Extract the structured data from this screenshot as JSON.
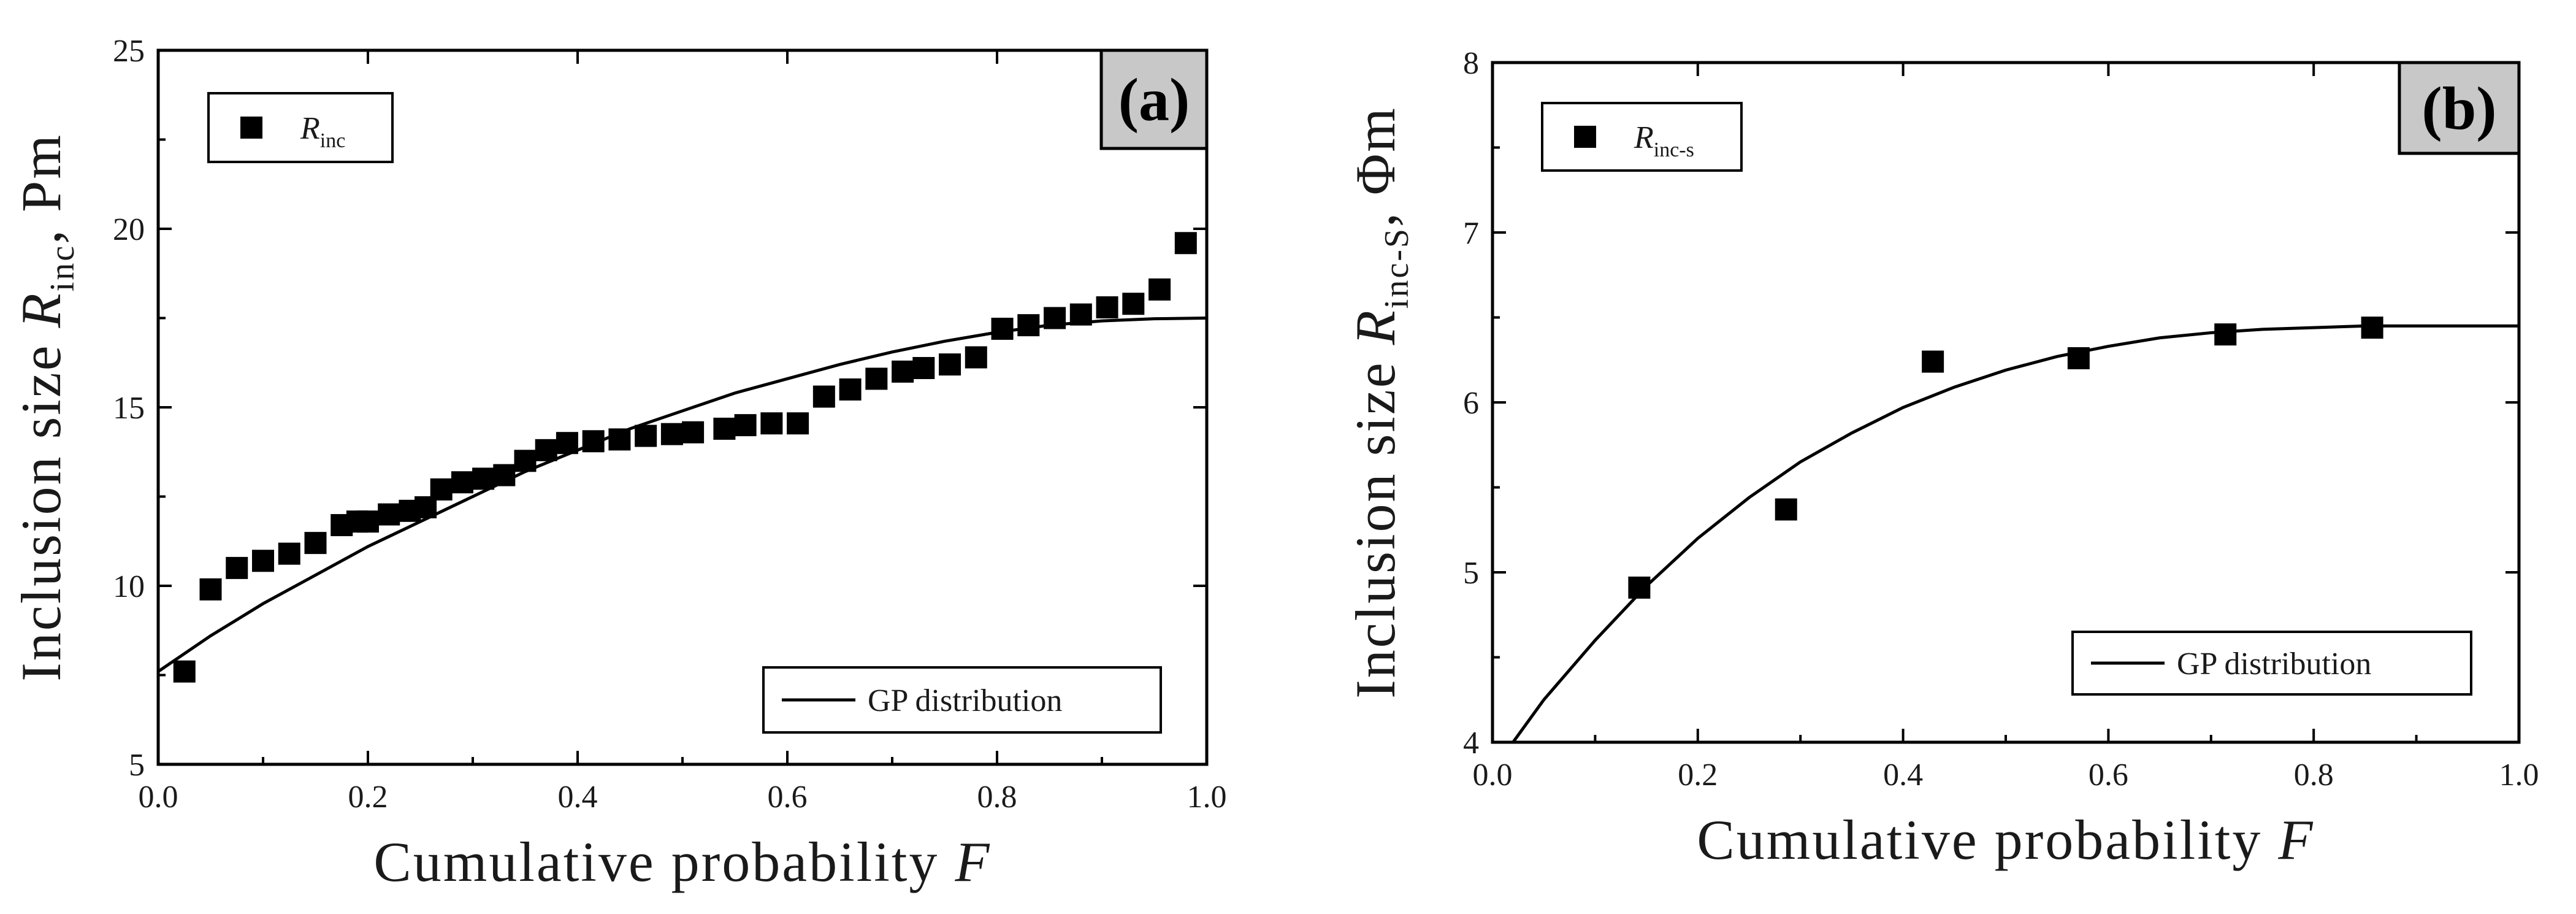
{
  "chart_data": [
    {
      "type": "scatter",
      "panel_label": "(a)",
      "xlabel": "Cumulative probability",
      "xlabel_var": "F",
      "ylabel_prefix": "Inclusion size",
      "ylabel_var": "R",
      "ylabel_sub": "inc",
      "ylabel_suffix": ", Pm",
      "xlim": [
        0.0,
        1.0
      ],
      "ylim": [
        5,
        25
      ],
      "xticks": [
        "0.0",
        "0.2",
        "0.4",
        "0.6",
        "0.8",
        "1.0"
      ],
      "yticks": [
        "5",
        "10",
        "15",
        "20",
        "25"
      ],
      "legend_upper": {
        "var": "R",
        "sub": "inc",
        "position": "top-left"
      },
      "legend_lower": {
        "label": "GP distribution",
        "position": "bottom-right"
      },
      "series": [
        {
          "name": "R_inc",
          "kind": "markers",
          "x": [
            0.025,
            0.05,
            0.075,
            0.1,
            0.125,
            0.15,
            0.175,
            0.19,
            0.2,
            0.22,
            0.24,
            0.255,
            0.27,
            0.29,
            0.31,
            0.33,
            0.35,
            0.37,
            0.39,
            0.415,
            0.44,
            0.465,
            0.49,
            0.51,
            0.54,
            0.56,
            0.585,
            0.61,
            0.635,
            0.66,
            0.685,
            0.71,
            0.73,
            0.755,
            0.78,
            0.805,
            0.83,
            0.855,
            0.88,
            0.905,
            0.93,
            0.955,
            0.98
          ],
          "y": [
            7.6,
            9.9,
            10.5,
            10.7,
            10.9,
            11.2,
            11.7,
            11.8,
            11.8,
            12.0,
            12.1,
            12.2,
            12.7,
            12.9,
            13.0,
            13.1,
            13.5,
            13.8,
            14.0,
            14.05,
            14.1,
            14.2,
            14.25,
            14.3,
            14.4,
            14.5,
            14.55,
            14.55,
            15.3,
            15.5,
            15.8,
            16.0,
            16.1,
            16.2,
            16.4,
            17.2,
            17.3,
            17.5,
            17.6,
            17.8,
            17.9,
            18.3,
            19.6
          ]
        },
        {
          "name": "GP distribution",
          "kind": "line",
          "x": [
            0.0,
            0.05,
            0.1,
            0.15,
            0.2,
            0.25,
            0.3,
            0.35,
            0.4,
            0.45,
            0.5,
            0.55,
            0.6,
            0.65,
            0.7,
            0.75,
            0.8,
            0.85,
            0.9,
            0.95,
            1.0
          ],
          "y": [
            7.6,
            8.6,
            9.5,
            10.3,
            11.1,
            11.8,
            12.5,
            13.2,
            13.8,
            14.4,
            14.9,
            15.4,
            15.8,
            16.2,
            16.55,
            16.85,
            17.1,
            17.3,
            17.42,
            17.48,
            17.5
          ]
        }
      ]
    },
    {
      "type": "scatter",
      "panel_label": "(b)",
      "xlabel": "Cumulative probability",
      "xlabel_var": "F",
      "ylabel_prefix": "Inclusion size",
      "ylabel_var": "R",
      "ylabel_sub": "inc-S",
      "ylabel_suffix": ", Φm",
      "xlim": [
        0.0,
        1.0
      ],
      "ylim": [
        4,
        8
      ],
      "xticks": [
        "0.0",
        "0.2",
        "0.4",
        "0.6",
        "0.8",
        "1.0"
      ],
      "yticks": [
        "4",
        "5",
        "6",
        "7",
        "8"
      ],
      "legend_upper": {
        "var": "R",
        "sub": "inc-s",
        "position": "top-left"
      },
      "legend_lower": {
        "label": "GP distribution",
        "position": "bottom-right"
      },
      "series": [
        {
          "name": "R_inc-s",
          "kind": "markers",
          "x": [
            0.143,
            0.286,
            0.429,
            0.571,
            0.714,
            0.857
          ],
          "y": [
            4.91,
            5.37,
            6.24,
            6.26,
            6.4,
            6.44
          ]
        },
        {
          "name": "GP distribution",
          "kind": "line",
          "x": [
            0.02,
            0.05,
            0.1,
            0.15,
            0.2,
            0.25,
            0.3,
            0.35,
            0.4,
            0.45,
            0.5,
            0.55,
            0.6,
            0.65,
            0.7,
            0.75,
            0.8,
            0.85,
            0.9,
            0.95,
            1.0
          ],
          "y": [
            4.0,
            4.25,
            4.6,
            4.92,
            5.2,
            5.44,
            5.65,
            5.82,
            5.97,
            6.09,
            6.19,
            6.27,
            6.33,
            6.38,
            6.41,
            6.43,
            6.44,
            6.45,
            6.45,
            6.45,
            6.45
          ]
        }
      ]
    }
  ]
}
